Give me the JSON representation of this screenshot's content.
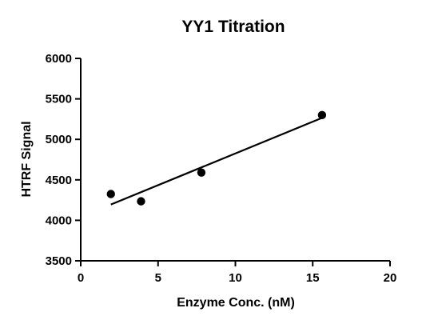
{
  "chart_data": {
    "type": "scatter",
    "title": "YY1 Titration",
    "xlabel": "Enzyme Conc. (nM)",
    "ylabel": "HTRF Signal",
    "xlim": [
      0,
      20
    ],
    "ylim": [
      3500,
      6000
    ],
    "xticks": [
      "0",
      "5",
      "10",
      "15",
      "20"
    ],
    "yticks": [
      "3500",
      "4000",
      "4500",
      "5000",
      "5500",
      "6000"
    ],
    "grid": false,
    "legend": "none",
    "series": [
      {
        "values": [
          {
            "x": 1.95,
            "y": 4325
          },
          {
            "x": 3.9,
            "y": 4235
          },
          {
            "x": 7.8,
            "y": 4590
          },
          {
            "x": 15.6,
            "y": 5300
          }
        ]
      }
    ],
    "fit_line": {
      "x": [
        1.95,
        15.6
      ],
      "y": [
        4195,
        5265
      ]
    },
    "colors": {
      "marks": "#000000",
      "background": "#ffffff"
    }
  }
}
